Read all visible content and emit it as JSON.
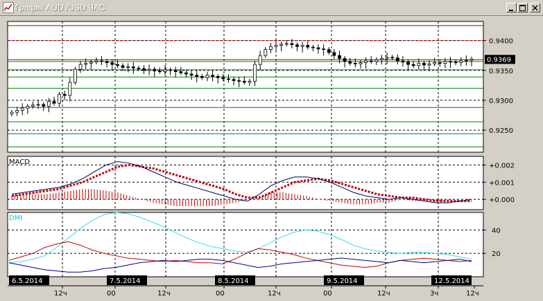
{
  "window": {
    "title": "График AUD /USD ЧАС",
    "buttons": [
      "minimize",
      "maximize",
      "close"
    ]
  },
  "chart_data": [
    {
      "type": "candlestick",
      "symbol": "AUD/USD",
      "timeframe": "ЧАС",
      "y_ticks": [
        "0.9400",
        "0.9350",
        "0.9300",
        "0.9250"
      ],
      "current_price_label": "0.9369",
      "ylim": [
        0.9213,
        0.9432
      ],
      "horizontal_levels": {
        "red": [
          0.9425,
          0.94,
          0.9368
        ],
        "green": [
          0.9365,
          0.9351,
          0.9339,
          0.932,
          0.9288,
          0.9264,
          0.9244,
          0.9222
        ]
      },
      "closes": [
        0.928,
        0.9283,
        0.9287,
        0.929,
        0.9292,
        0.9293,
        0.929,
        0.9298,
        0.9295,
        0.931,
        0.9308,
        0.933,
        0.9352,
        0.936,
        0.9362,
        0.9364,
        0.9366,
        0.9365,
        0.9363,
        0.936,
        0.9358,
        0.9355,
        0.9356,
        0.9354,
        0.9353,
        0.935,
        0.9352,
        0.9349,
        0.9348,
        0.9351,
        0.935,
        0.9348,
        0.9346,
        0.9344,
        0.9342,
        0.934,
        0.9338,
        0.9342,
        0.934,
        0.9338,
        0.9336,
        0.9335,
        0.9333,
        0.9332,
        0.933,
        0.9332,
        0.936,
        0.9375,
        0.9385,
        0.939,
        0.9392,
        0.9394,
        0.9395,
        0.9393,
        0.939,
        0.9392,
        0.9389,
        0.9388,
        0.9386,
        0.9385,
        0.938,
        0.9375,
        0.937,
        0.9365,
        0.9362,
        0.9361,
        0.9363,
        0.9366,
        0.9365,
        0.9368,
        0.937,
        0.9372,
        0.9371,
        0.9366,
        0.9364,
        0.936,
        0.9358,
        0.9362,
        0.9359,
        0.9361,
        0.9363,
        0.9362,
        0.9365,
        0.9364,
        0.9363,
        0.9366,
        0.9367,
        0.9369
      ],
      "macd": {
        "label": "MACD",
        "y_ticks": [
          "+0.002",
          "+0.001",
          "+0.000"
        ],
        "ylim": [
          -0.0006,
          0.0025
        ],
        "macd_line": [
          0.0003,
          0.0004,
          0.0005,
          0.0006,
          0.0007,
          0.0009,
          0.0012,
          0.0016,
          0.002,
          0.0022,
          0.0021,
          0.0019,
          0.0016,
          0.0013,
          0.001,
          0.0008,
          0.0006,
          0.0004,
          0.0002,
          0.0,
          -0.0001,
          0.0003,
          0.0008,
          0.0011,
          0.0013,
          0.0013,
          0.0012,
          0.001,
          0.0007,
          0.0004,
          0.0002,
          0.0001,
          0.0,
          0.0001,
          0.0,
          -0.0001,
          -0.0002,
          -0.0002,
          -0.0001,
          0.0
        ],
        "signal_line": [
          0.0002,
          0.0003,
          0.0004,
          0.0005,
          0.0006,
          0.0008,
          0.001,
          0.0013,
          0.0016,
          0.0019,
          0.002,
          0.0019,
          0.0018,
          0.0016,
          0.0014,
          0.0012,
          0.001,
          0.0008,
          0.0006,
          0.0003,
          0.0001,
          0.0001,
          0.0004,
          0.0007,
          0.001,
          0.0011,
          0.0012,
          0.0011,
          0.0009,
          0.0007,
          0.0005,
          0.0003,
          0.0002,
          0.0001,
          0.0001,
          0.0,
          -0.0001,
          -0.0001,
          -0.0001,
          -0.0001
        ],
        "histogram": [
          0.0002,
          0.0003,
          0.0003,
          0.0003,
          0.0004,
          0.0005,
          0.0006,
          0.0006,
          0.0005,
          0.0004,
          0.0002,
          0.0,
          -0.0002,
          -0.0003,
          -0.0004,
          -0.0004,
          -0.0004,
          -0.0004,
          -0.0003,
          -0.0002,
          0.0,
          0.0002,
          0.0004,
          0.0004,
          0.0003,
          0.0002,
          0.0,
          -0.0001,
          -0.0002,
          -0.0003,
          -0.0003,
          -0.0002,
          -0.0002,
          0.0,
          -0.0001,
          -0.0001,
          -0.0001,
          -0.0001,
          0.0,
          0.0
        ]
      },
      "dmi": {
        "label": "DMI",
        "y_ticks": [
          "40",
          "20"
        ],
        "ylim": [
          0,
          55
        ],
        "adx": [
          12,
          13,
          15,
          18,
          25,
          33,
          41,
          48,
          53,
          55,
          54,
          51,
          47,
          43,
          38,
          33,
          29,
          26,
          24,
          22,
          21,
          24,
          29,
          34,
          38,
          40,
          39,
          36,
          32,
          27,
          24,
          22,
          21,
          20,
          21,
          21,
          20,
          19,
          17,
          15
        ],
        "plus_di": [
          14,
          17,
          20,
          25,
          28,
          30,
          27,
          23,
          20,
          18,
          16,
          15,
          14,
          13,
          14,
          13,
          12,
          12,
          11,
          15,
          20,
          24,
          23,
          21,
          19,
          16,
          14,
          12,
          10,
          9,
          8,
          9,
          12,
          14,
          15,
          16,
          15,
          14,
          13,
          14
        ],
        "minus_di": [
          12,
          10,
          8,
          6,
          5,
          4,
          4,
          5,
          7,
          8,
          10,
          12,
          13,
          14,
          13,
          14,
          15,
          15,
          14,
          12,
          10,
          8,
          9,
          11,
          12,
          13,
          14,
          15,
          16,
          15,
          14,
          13,
          12,
          14,
          13,
          12,
          13,
          14,
          15,
          13
        ]
      },
      "date_labels": [
        "6.5.2014",
        "7.5.2014",
        "8.5.2014",
        "9.5.2014",
        "12.5.2014"
      ],
      "time_labels": [
        "12ч",
        "00",
        "12ч",
        "00",
        "12ч",
        "00",
        "12ч",
        "3ч",
        "12ч"
      ]
    }
  ]
}
